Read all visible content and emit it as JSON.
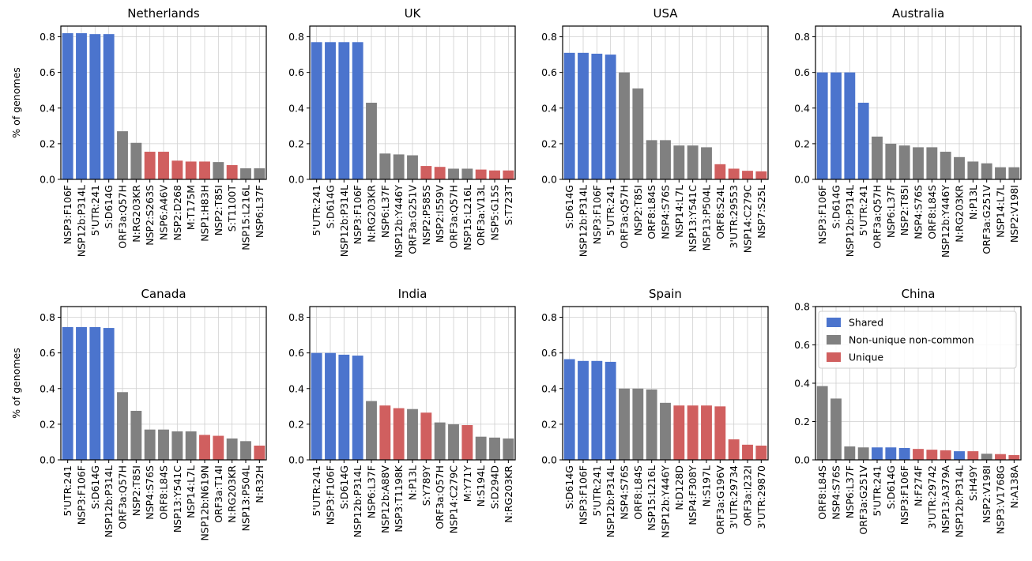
{
  "chart_data": [
    {
      "type": "bar",
      "title": "Netherlands",
      "ylabel": "% of genomes",
      "categories": [
        "NSP3:F106F",
        "NSP12b:P314L",
        "5'UTR:241",
        "S:D614G",
        "ORF3a:Q57H",
        "N:RG203KR",
        "NSP2:S263S",
        "NSP6:A46V",
        "NSP2:D268",
        "M:T175M",
        "NSP1:H83H",
        "NSP2:T85I",
        "S:T1100T",
        "NSP15:L216L",
        "NSP6:L37F"
      ],
      "values": [
        0.82,
        0.82,
        0.815,
        0.815,
        0.27,
        0.205,
        0.155,
        0.155,
        0.105,
        0.1,
        0.1,
        0.097,
        0.08,
        0.062,
        0.062
      ],
      "colors": [
        "#4b74cd",
        "#4b74cd",
        "#4b74cd",
        "#4b74cd",
        "#808080",
        "#808080",
        "#d05f5f",
        "#d05f5f",
        "#d05f5f",
        "#d05f5f",
        "#d05f5f",
        "#808080",
        "#d05f5f",
        "#808080",
        "#808080"
      ],
      "ylim": [
        0,
        0.86
      ],
      "yticks": [
        {
          "value": 0,
          "label": "0.0"
        },
        0.2,
        0.4,
        0.6,
        0.8
      ],
      "grid": true
    },
    {
      "type": "bar",
      "title": "UK",
      "categories": [
        "5'UTR:241",
        "S:D614G",
        "NSP12b:P314L",
        "NSP3:F106F",
        "N:RG203KR",
        "NSP6:L37F",
        "NSP12b:Y446Y",
        "ORF3a:G251V",
        "NSP2:P585S",
        "NSP2:I559V",
        "ORF3a:Q57H",
        "NSP15:L216L",
        "ORF3a:V13L",
        "NSP5:G15S",
        "S:T723T"
      ],
      "values": [
        0.77,
        0.77,
        0.77,
        0.77,
        0.43,
        0.145,
        0.14,
        0.135,
        0.075,
        0.07,
        0.06,
        0.06,
        0.055,
        0.05,
        0.05
      ],
      "colors": [
        "#4b74cd",
        "#4b74cd",
        "#4b74cd",
        "#4b74cd",
        "#808080",
        "#808080",
        "#808080",
        "#808080",
        "#d05f5f",
        "#d05f5f",
        "#808080",
        "#808080",
        "#d05f5f",
        "#d05f5f",
        "#d05f5f"
      ],
      "ylim": [
        0,
        0.86
      ],
      "yticks": [
        {
          "value": 0,
          "label": "0.0"
        },
        0.2,
        0.4,
        0.6,
        0.8
      ],
      "grid": true
    },
    {
      "type": "bar",
      "title": "USA",
      "categories": [
        "S:D614G",
        "NSP12b:P314L",
        "NSP3:F106F",
        "5'UTR:241",
        "ORF3a:Q57H",
        "NSP2:T85I",
        "ORF8:L84S",
        "NSP4:S76S",
        "NSP14:L7L",
        "NSP13:Y541C",
        "NSP13:P504L",
        "ORF8:S24L",
        "3'UTR:29553",
        "NSP14:C279C",
        "NSP7:S25L"
      ],
      "values": [
        0.71,
        0.71,
        0.705,
        0.7,
        0.6,
        0.51,
        0.22,
        0.22,
        0.19,
        0.19,
        0.18,
        0.085,
        0.06,
        0.048,
        0.045
      ],
      "colors": [
        "#4b74cd",
        "#4b74cd",
        "#4b74cd",
        "#4b74cd",
        "#808080",
        "#808080",
        "#808080",
        "#808080",
        "#808080",
        "#808080",
        "#808080",
        "#d05f5f",
        "#d05f5f",
        "#d05f5f",
        "#d05f5f"
      ],
      "ylim": [
        0,
        0.86
      ],
      "yticks": [
        {
          "value": 0,
          "label": "0.0"
        },
        0.2,
        0.4,
        0.6,
        0.8
      ],
      "grid": true
    },
    {
      "type": "bar",
      "title": "Australia",
      "categories": [
        "NSP3:F106F",
        "S:D614G",
        "NSP12b:P314L",
        "5'UTR:241",
        "ORF3a:Q57H",
        "NSP6:L37F",
        "NSP2:T85I",
        "NSP4:S76S",
        "ORF8:L84S",
        "NSP12b:Y446Y",
        "N:RG203KR",
        "N:P13L",
        "ORF3a:G251V",
        "NSP14:L7L",
        "NSP2:V198I"
      ],
      "values": [
        0.6,
        0.6,
        0.6,
        0.43,
        0.24,
        0.2,
        0.19,
        0.18,
        0.18,
        0.155,
        0.125,
        0.1,
        0.09,
        0.068,
        0.068
      ],
      "colors": [
        "#4b74cd",
        "#4b74cd",
        "#4b74cd",
        "#4b74cd",
        "#808080",
        "#808080",
        "#808080",
        "#808080",
        "#808080",
        "#808080",
        "#808080",
        "#808080",
        "#808080",
        "#808080",
        "#808080"
      ],
      "ylim": [
        0,
        0.86
      ],
      "yticks": [
        {
          "value": 0,
          "label": "0.0"
        },
        0.2,
        0.4,
        0.6,
        0.8
      ],
      "grid": true
    },
    {
      "type": "bar",
      "title": "Canada",
      "ylabel": "% of genomes",
      "categories": [
        "5'UTR:241",
        "NSP3:F106F",
        "S:D614G",
        "NSP12b:P314L",
        "ORF3a:Q57H",
        "NSP2:T85I",
        "NSP4:S76S",
        "ORF8:L84S",
        "NSP13:Y541C",
        "NSP14:L7L",
        "NSP12b:N619N",
        "ORF3a:T14I",
        "N:RG203KR",
        "NSP13:P504L",
        "N:R32H"
      ],
      "values": [
        0.745,
        0.745,
        0.745,
        0.74,
        0.38,
        0.275,
        0.17,
        0.17,
        0.16,
        0.16,
        0.14,
        0.135,
        0.12,
        0.105,
        0.08
      ],
      "colors": [
        "#4b74cd",
        "#4b74cd",
        "#4b74cd",
        "#4b74cd",
        "#808080",
        "#808080",
        "#808080",
        "#808080",
        "#808080",
        "#808080",
        "#d05f5f",
        "#d05f5f",
        "#808080",
        "#808080",
        "#d05f5f"
      ],
      "ylim": [
        0,
        0.86
      ],
      "yticks": [
        {
          "value": 0,
          "label": "0.0"
        },
        0.2,
        0.4,
        0.6,
        0.8
      ],
      "grid": true
    },
    {
      "type": "bar",
      "title": "India",
      "categories": [
        "5'UTR:241",
        "NSP3:F106F",
        "S:D614G",
        "NSP12b:P314L",
        "NSP6:L37F",
        "NSP12b:A88V",
        "NSP3:T1198K",
        "N:P13L",
        "S:Y789Y",
        "ORF3a:Q57H",
        "NSP14:C279C",
        "M:Y71Y",
        "N:S194L",
        "S:D294D",
        "N:RG203KR"
      ],
      "values": [
        0.6,
        0.6,
        0.59,
        0.585,
        0.33,
        0.305,
        0.29,
        0.285,
        0.265,
        0.21,
        0.2,
        0.195,
        0.13,
        0.125,
        0.12
      ],
      "colors": [
        "#4b74cd",
        "#4b74cd",
        "#4b74cd",
        "#4b74cd",
        "#808080",
        "#d05f5f",
        "#d05f5f",
        "#808080",
        "#d05f5f",
        "#808080",
        "#808080",
        "#d05f5f",
        "#808080",
        "#808080",
        "#808080"
      ],
      "ylim": [
        0,
        0.86
      ],
      "yticks": [
        {
          "value": 0,
          "label": "0.0"
        },
        0.2,
        0.4,
        0.6,
        0.8
      ],
      "grid": true
    },
    {
      "type": "bar",
      "title": "Spain",
      "categories": [
        "S:D614G",
        "NSP3:F106F",
        "5'UTR:241",
        "NSP12b:P314L",
        "NSP4:S76S",
        "ORF8:L84S",
        "NSP15:L216L",
        "NSP12b:Y446Y",
        "N:D128D",
        "NSP4:F308Y",
        "N:S197L",
        "ORF3a:G196V",
        "3'UTR:29734",
        "ORF3a:I232I",
        "3'UTR:29870"
      ],
      "values": [
        0.565,
        0.555,
        0.555,
        0.55,
        0.4,
        0.4,
        0.395,
        0.32,
        0.305,
        0.305,
        0.305,
        0.3,
        0.115,
        0.085,
        0.08
      ],
      "colors": [
        "#4b74cd",
        "#4b74cd",
        "#4b74cd",
        "#4b74cd",
        "#808080",
        "#808080",
        "#808080",
        "#808080",
        "#d05f5f",
        "#d05f5f",
        "#d05f5f",
        "#d05f5f",
        "#d05f5f",
        "#d05f5f",
        "#d05f5f"
      ],
      "ylim": [
        0,
        0.86
      ],
      "yticks": [
        {
          "value": 0,
          "label": "0.0"
        },
        0.2,
        0.4,
        0.6,
        0.8
      ],
      "grid": true
    },
    {
      "type": "bar",
      "title": "China",
      "categories": [
        "ORF8:L84S",
        "NSP4:S76S",
        "NSP6:L37F",
        "ORF3a:G251V",
        "5'UTR:241",
        "S:D614G",
        "NSP3:F106F",
        "N:F274F",
        "3'UTR:29742",
        "NSP13:A379A",
        "NSP12b:P314L",
        "S:H49Y",
        "NSP2:V198I",
        "NSP3:V1768G",
        "N:A138A"
      ],
      "values": [
        0.385,
        0.32,
        0.07,
        0.065,
        0.065,
        0.065,
        0.062,
        0.057,
        0.053,
        0.05,
        0.045,
        0.045,
        0.032,
        0.03,
        0.025
      ],
      "colors": [
        "#808080",
        "#808080",
        "#808080",
        "#808080",
        "#4b74cd",
        "#4b74cd",
        "#4b74cd",
        "#d05f5f",
        "#d05f5f",
        "#d05f5f",
        "#4b74cd",
        "#d05f5f",
        "#808080",
        "#d05f5f",
        "#d05f5f"
      ],
      "ylim": [
        0,
        0.8
      ],
      "yticks": [
        {
          "value": 0,
          "label": "0.0"
        },
        0.2,
        0.4,
        0.6,
        0.8
      ],
      "grid": true,
      "legend": {
        "loc": "upper right",
        "entries": [
          {
            "name": "Shared",
            "color": "#4b74cd"
          },
          {
            "name": "Non-unique non-common",
            "color": "#808080"
          },
          {
            "name": "Unique",
            "color": "#d05f5f"
          }
        ]
      }
    }
  ]
}
